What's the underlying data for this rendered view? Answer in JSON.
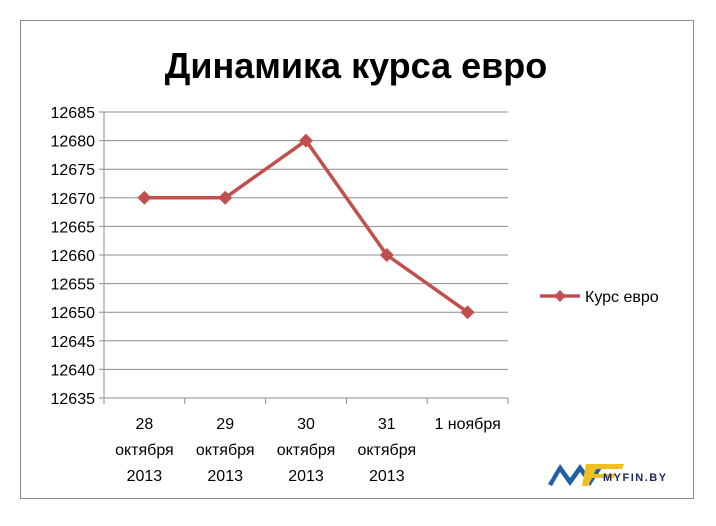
{
  "chart_data": {
    "type": "line",
    "title": "Динамика курса евро",
    "categories": [
      [
        "28",
        "октября",
        "2013"
      ],
      [
        "29",
        "октября",
        "2013"
      ],
      [
        "30",
        "октября",
        "2013"
      ],
      [
        "31",
        "октября",
        "2013"
      ],
      [
        "1 ноября"
      ]
    ],
    "series": [
      {
        "name": "Курс евро",
        "values": [
          12670,
          12670,
          12680,
          12660,
          12650
        ],
        "color": "#c0504d"
      }
    ],
    "ylim": [
      12635,
      12685
    ],
    "ystep": 5,
    "grid": true,
    "legend": "right"
  },
  "watermark": {
    "text": "MYFIN.BY"
  }
}
